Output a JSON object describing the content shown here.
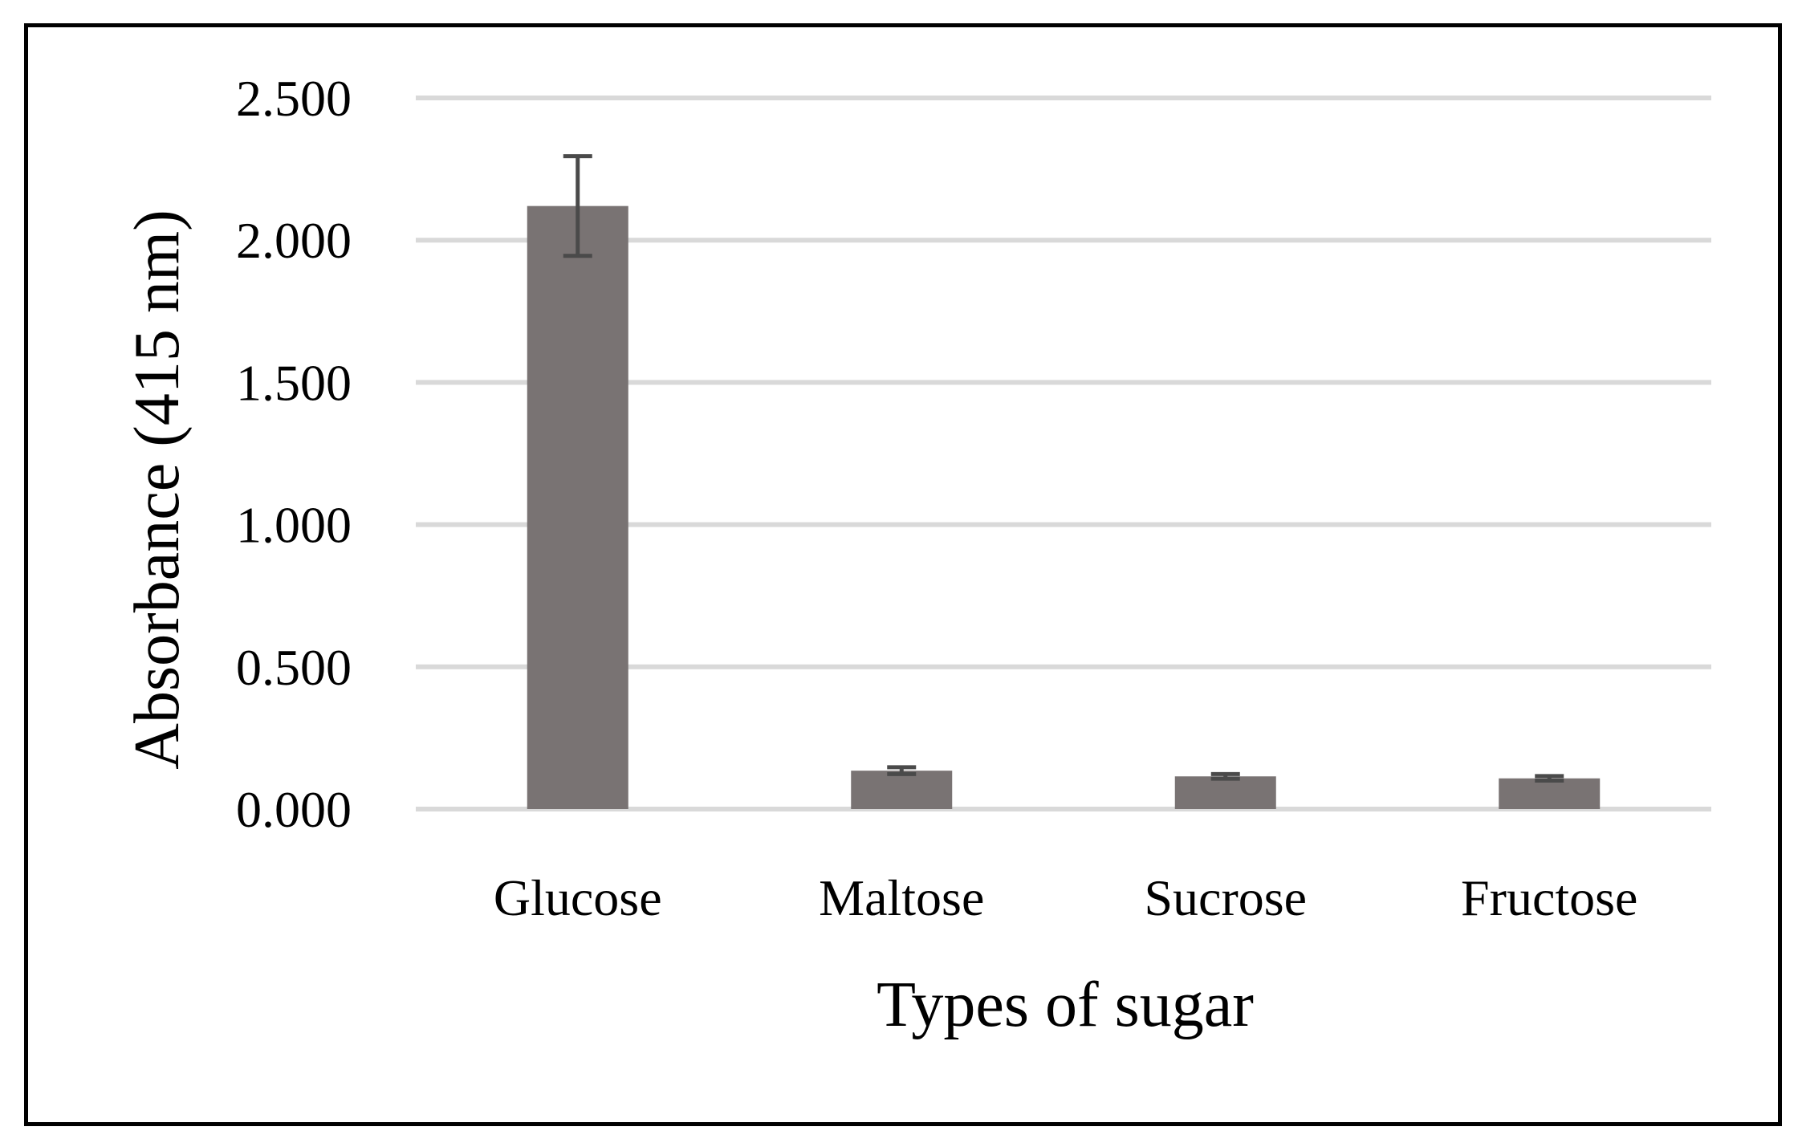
{
  "chart_data": {
    "type": "bar",
    "title": "",
    "xlabel": "Types of sugar",
    "ylabel": "Absorbance (415 nm)",
    "categories": [
      "Glucose",
      "Maltose",
      "Sucrose",
      "Fructose"
    ],
    "values": [
      2.12,
      0.135,
      0.115,
      0.108
    ],
    "errors": [
      0.175,
      0.012,
      0.008,
      0.008
    ],
    "ylim": [
      0,
      2.5
    ],
    "yticks": [
      0,
      0.5,
      1.0,
      1.5,
      2.0,
      2.5
    ],
    "ytick_labels": [
      "0.000",
      "0.500",
      "1.000",
      "1.500",
      "2.000",
      "2.500"
    ],
    "grid": true,
    "legend": "none",
    "bar_color": "#797373",
    "error_bar_color": "#4a4a4a",
    "grid_color": "#d9d9d9"
  }
}
